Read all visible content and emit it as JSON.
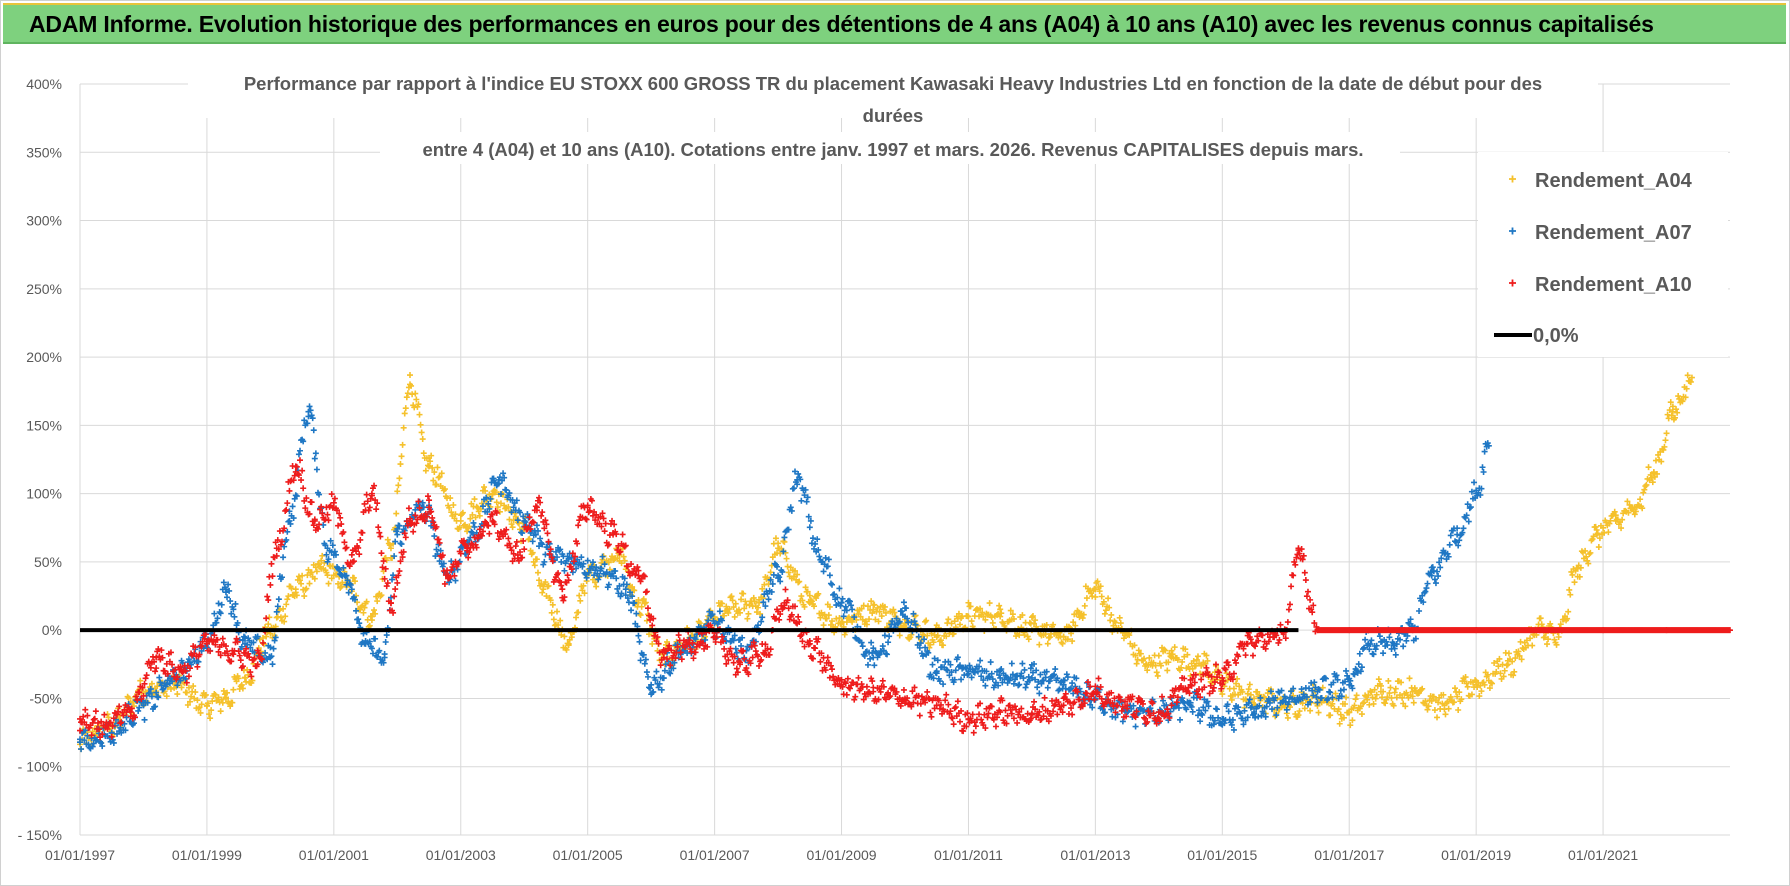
{
  "header": {
    "title": "ADAM Informe. Evolution historique des performances en euros pour des détentions de 4 ans (A04) à 10 ans (A10) avec les revenus connus capitalisés"
  },
  "colors": {
    "a04": "#f5c12c",
    "a07": "#1f77c4",
    "a10": "#ee1c1c",
    "zero": "#000000",
    "grid": "#d9d9d9",
    "header_bg": "#7ed17e"
  },
  "chart_data": {
    "type": "scatter",
    "title_lines": [
      "Performance par rapport à l'indice EU STOXX 600 GROSS TR  du placement Kawasaki Heavy Industries Ltd en fonction de la date de début pour des",
      "durées",
      "entre 4 (A04) et 10 ans (A10).  Cotations entre janv. 1997 et mars. 2026.  Revenus CAPITALISES  depuis mars."
    ],
    "x_unit": "year",
    "xlim": [
      1997.0,
      2023.0
    ],
    "ylim": [
      -150,
      400
    ],
    "y_ticks": [
      -150,
      -100,
      -50,
      0,
      50,
      100,
      150,
      200,
      250,
      300,
      350,
      400
    ],
    "y_tick_labels": [
      "- 150%",
      "- 100%",
      "-50%",
      "0%",
      "50%",
      "100%",
      "150%",
      "200%",
      "250%",
      "300%",
      "350%",
      "400%"
    ],
    "x_ticks": [
      1997,
      1999,
      2001,
      2003,
      2005,
      2007,
      2009,
      2011,
      2013,
      2015,
      2017,
      2019,
      2021
    ],
    "x_tick_labels": [
      "01/01/1997",
      "01/01/1999",
      "01/01/2001",
      "01/01/2003",
      "01/01/2005",
      "01/01/2007",
      "01/01/2009",
      "01/01/2011",
      "01/01/2013",
      "01/01/2015",
      "01/01/2017",
      "01/01/2019",
      "01/01/2021"
    ],
    "legend_position": "top-right",
    "legend": [
      "Rendement_A04",
      "Rendement_A07",
      "Rendement_A10",
      "0,0%"
    ],
    "series": [
      {
        "name": "Rendement_A04",
        "x": [
          1997.0,
          1997.5,
          1998.0,
          1998.5,
          1999.0,
          1999.3,
          1999.6,
          2000.0,
          2000.4,
          2000.8,
          2001.2,
          2001.6,
          2001.9,
          2002.2,
          2002.5,
          2003.0,
          2003.5,
          2004.0,
          2004.3,
          2004.7,
          2005.0,
          2005.5,
          2005.8,
          2006.2,
          2006.7,
          2007.2,
          2007.7,
          2008.0,
          2008.5,
          2009.0,
          2009.5,
          2010.0,
          2010.5,
          2011.0,
          2011.5,
          2012.0,
          2012.5,
          2013.0,
          2013.4,
          2013.8,
          2014.2,
          2014.7,
          2015.0,
          2015.5,
          2016.0,
          2016.5,
          2017.0,
          2017.5,
          2018.0,
          2018.5,
          2019.0,
          2019.5,
          2020.0,
          2020.3,
          2020.6,
          2020.9,
          2021.2,
          2021.5,
          2021.8,
          2022.1,
          2022.4
        ],
        "y": [
          -82,
          -70,
          -45,
          -40,
          -55,
          -50,
          -35,
          0,
          30,
          45,
          35,
          10,
          60,
          180,
          120,
          80,
          100,
          75,
          30,
          -10,
          40,
          55,
          20,
          -20,
          -5,
          15,
          20,
          60,
          20,
          5,
          15,
          5,
          -5,
          10,
          10,
          0,
          -5,
          30,
          0,
          -25,
          -20,
          -25,
          -40,
          -50,
          -55,
          -50,
          -60,
          -45,
          -45,
          -55,
          -40,
          -25,
          0,
          -5,
          45,
          70,
          80,
          90,
          115,
          160,
          185
        ]
      },
      {
        "name": "Rendement_A07",
        "x": [
          1997.0,
          1997.5,
          1998.0,
          1998.5,
          1999.0,
          1999.3,
          1999.6,
          2000.0,
          2000.3,
          2000.6,
          2000.9,
          2001.2,
          2001.5,
          2001.8,
          2002.0,
          2002.4,
          2002.8,
          2003.2,
          2003.6,
          2004.0,
          2004.4,
          2004.8,
          2005.2,
          2005.6,
          2006.0,
          2006.5,
          2007.0,
          2007.5,
          2008.0,
          2008.3,
          2008.7,
          2009.0,
          2009.5,
          2010.0,
          2010.5,
          2011.0,
          2011.5,
          2012.0,
          2012.5,
          2013.0,
          2013.5,
          2014.0,
          2014.5,
          2015.0,
          2015.5,
          2016.0,
          2016.5,
          2017.0,
          2017.3,
          2017.7,
          2018.0,
          2018.3,
          2018.7,
          2019.0,
          2019.2
        ],
        "y": [
          -82,
          -75,
          -55,
          -35,
          -10,
          30,
          -10,
          -20,
          80,
          160,
          60,
          40,
          -10,
          -20,
          70,
          90,
          40,
          70,
          110,
          80,
          55,
          50,
          45,
          30,
          -40,
          -15,
          5,
          -15,
          40,
          110,
          50,
          20,
          -20,
          10,
          -30,
          -30,
          -35,
          -35,
          -40,
          -50,
          -60,
          -60,
          -55,
          -65,
          -60,
          -50,
          -45,
          -40,
          -10,
          -10,
          0,
          40,
          70,
          100,
          135
        ]
      },
      {
        "name": "Rendement_A10",
        "x": [
          1997.0,
          1997.4,
          1997.8,
          1998.2,
          1998.6,
          1999.0,
          1999.4,
          1999.8,
          2000.1,
          2000.4,
          2000.7,
          2001.0,
          2001.3,
          2001.6,
          2001.9,
          2002.2,
          2002.5,
          2002.8,
          2003.1,
          2003.5,
          2003.9,
          2004.2,
          2004.6,
          2005.0,
          2005.4,
          2005.8,
          2006.2,
          2006.6,
          2007.0,
          2007.4,
          2007.8,
          2008.1,
          2008.5,
          2009.0,
          2009.5,
          2010.0,
          2010.5,
          2011.0,
          2011.5,
          2012.0,
          2012.5,
          2013.0,
          2013.5,
          2014.0,
          2014.5,
          2015.0,
          2015.4,
          2015.8,
          2016.0,
          2016.2,
          2016.5,
          2017.0,
          2018.0,
          2019.0,
          2020.0,
          2021.0,
          2022.0,
          2023.0
        ],
        "y": [
          -65,
          -70,
          -60,
          -20,
          -30,
          -10,
          -15,
          -25,
          60,
          120,
          80,
          90,
          50,
          100,
          20,
          80,
          90,
          40,
          60,
          80,
          55,
          90,
          30,
          90,
          70,
          40,
          -20,
          -10,
          -5,
          -25,
          -15,
          20,
          -10,
          -40,
          -45,
          -50,
          -55,
          -65,
          -60,
          -62,
          -55,
          -45,
          -55,
          -60,
          -40,
          -35,
          -10,
          -5,
          0,
          60,
          0,
          0,
          0,
          0,
          0,
          0,
          0,
          0
        ]
      },
      {
        "name": "0,0%",
        "x": [
          1997.0,
          2016.2
        ],
        "y": [
          0,
          0
        ]
      }
    ]
  }
}
